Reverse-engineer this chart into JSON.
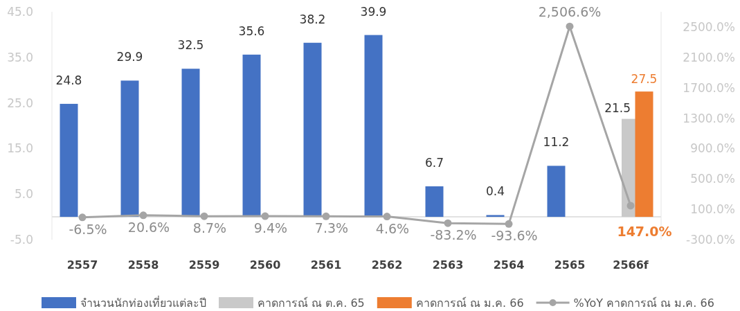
{
  "chart_data": {
    "type": "bar",
    "categories": [
      "2557",
      "2558",
      "2559",
      "2560",
      "2561",
      "2562",
      "2563",
      "2564",
      "2565",
      "2566f"
    ],
    "series": [
      {
        "name": "จำนวนนักท่องเที่ยวแต่ละปี",
        "color": "#4472c4",
        "values": [
          24.8,
          29.9,
          32.5,
          35.6,
          38.2,
          39.9,
          6.7,
          0.4,
          11.2,
          null
        ],
        "value_labels": [
          "24.8",
          "29.9",
          "32.5",
          "35.6",
          "38.2",
          "39.9",
          "6.7",
          "0.4",
          "11.2",
          null
        ]
      },
      {
        "name": "คาดการณ์ ณ ต.ค. 65",
        "color": "#c9c9c9",
        "values": [
          null,
          null,
          null,
          null,
          null,
          null,
          null,
          null,
          null,
          21.5
        ],
        "value_labels": [
          null,
          null,
          null,
          null,
          null,
          null,
          null,
          null,
          null,
          "21.5"
        ]
      },
      {
        "name": "คาดการณ์ ณ ม.ค. 66",
        "color": "#ed7d31",
        "values": [
          null,
          null,
          null,
          null,
          null,
          null,
          null,
          null,
          null,
          27.5
        ],
        "value_labels": [
          null,
          null,
          null,
          null,
          null,
          null,
          null,
          null,
          null,
          "27.5"
        ]
      },
      {
        "name": "%YoY คาดการณ์ ณ ม.ค. 66",
        "type": "line",
        "axis": "y2",
        "color": "#a5a5a5",
        "marker": "circle",
        "values": [
          -6.5,
          20.6,
          8.7,
          9.4,
          7.3,
          4.6,
          -83.2,
          -93.6,
          2506.6,
          147.0
        ],
        "value_labels": [
          "-6.5%",
          "20.6%",
          "8.7%",
          "9.4%",
          "7.3%",
          "4.6%",
          "-83.2%",
          "-93.6%",
          "2,506.6%",
          "147.0%"
        ]
      }
    ],
    "ylim": [
      -5,
      45
    ],
    "yticks": [
      {
        "value": -5,
        "label": "-5.0"
      },
      {
        "value": 5,
        "label": "5.0"
      },
      {
        "value": 15,
        "label": "15.0"
      },
      {
        "value": 25,
        "label": "25.0"
      },
      {
        "value": 35,
        "label": "35.0"
      },
      {
        "value": 45,
        "label": "45.0"
      }
    ],
    "y2lim": [
      -300,
      2700
    ],
    "y2ticks": [
      {
        "value": -300,
        "label": "-300.0%"
      },
      {
        "value": 100,
        "label": "100.0%"
      },
      {
        "value": 500,
        "label": "500.0%"
      },
      {
        "value": 900,
        "label": "900.0%"
      },
      {
        "value": 1300,
        "label": "1300.0%"
      },
      {
        "value": 1700,
        "label": "1700.0%"
      },
      {
        "value": 2100,
        "label": "2100.0%"
      },
      {
        "value": 2500,
        "label": "2500.0%"
      }
    ],
    "legend": "bottom"
  }
}
